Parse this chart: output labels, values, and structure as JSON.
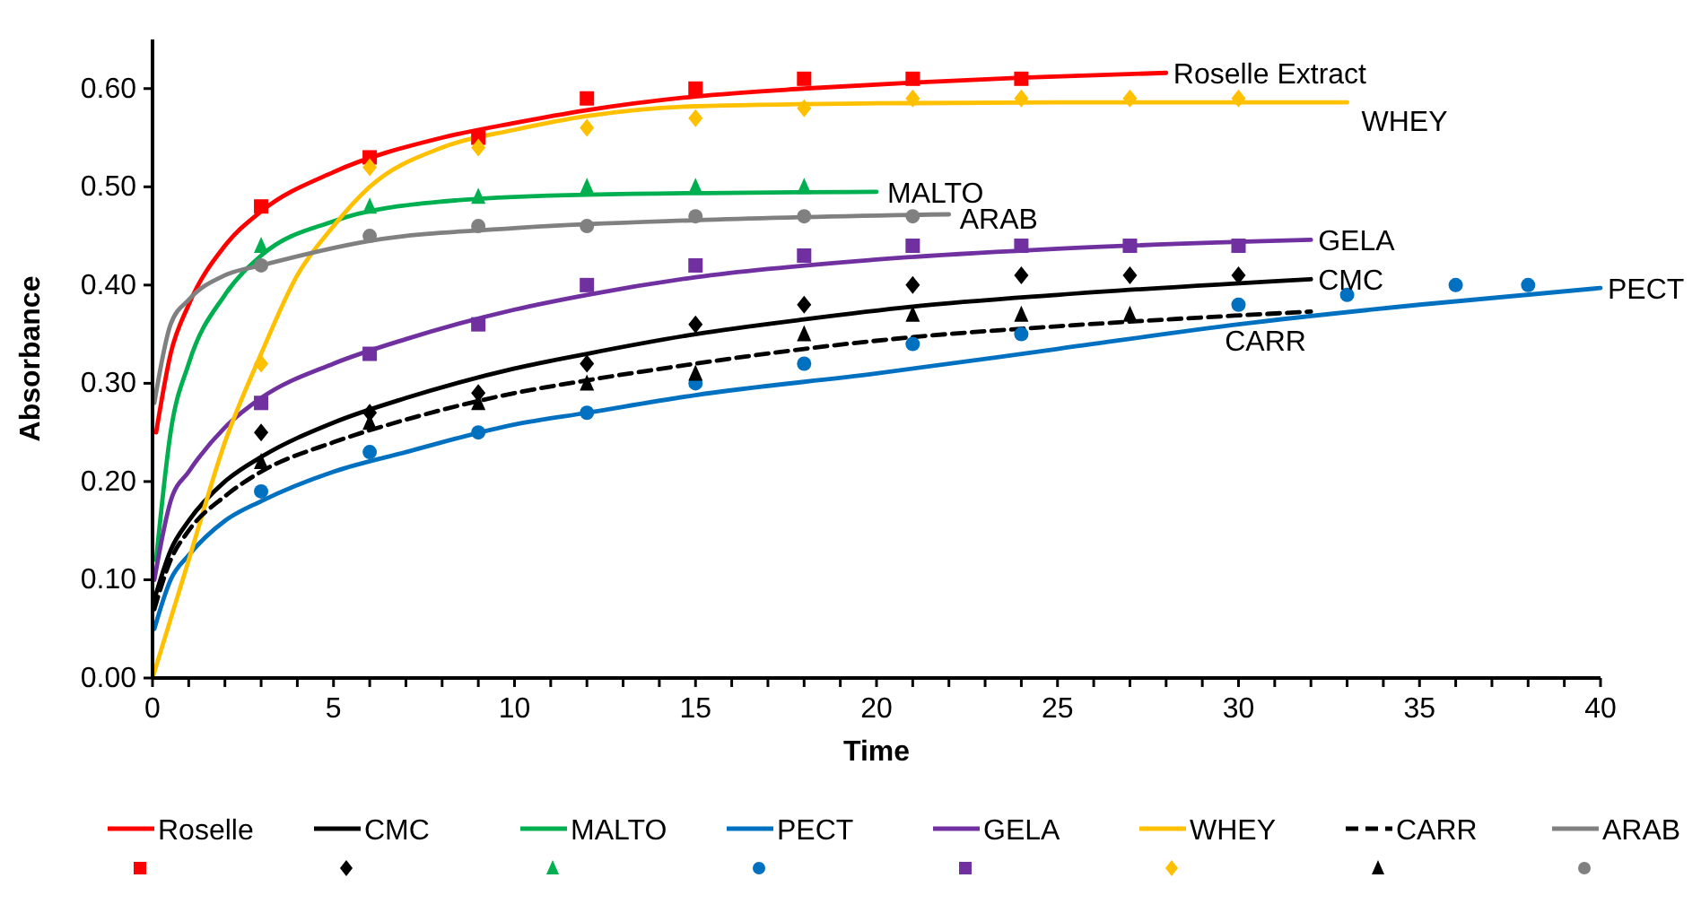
{
  "chart_data": {
    "type": "line",
    "xlabel": "Time",
    "ylabel": "Absorbance",
    "xlim": [
      0,
      40
    ],
    "ylim": [
      0,
      0.65
    ],
    "xticks": [
      0,
      {
        "value": 1,
        "label": null
      },
      {
        "value": 2,
        "label": null
      },
      {
        "value": 3,
        "label": null
      },
      {
        "value": 4,
        "label": null
      },
      5,
      {
        "value": 6,
        "label": null
      },
      {
        "value": 7,
        "label": null
      },
      {
        "value": 8,
        "label": null
      },
      {
        "value": 9,
        "label": null
      },
      10,
      {
        "value": 11,
        "label": null
      },
      {
        "value": 12,
        "label": null
      },
      {
        "value": 13,
        "label": null
      },
      {
        "value": 14,
        "label": null
      },
      15,
      {
        "value": 16,
        "label": null
      },
      {
        "value": 17,
        "label": null
      },
      {
        "value": 18,
        "label": null
      },
      {
        "value": 19,
        "label": null
      },
      20,
      {
        "value": 21,
        "label": null
      },
      {
        "value": 22,
        "label": null
      },
      {
        "value": 23,
        "label": null
      },
      {
        "value": 24,
        "label": null
      },
      25,
      {
        "value": 26,
        "label": null
      },
      {
        "value": 27,
        "label": null
      },
      {
        "value": 28,
        "label": null
      },
      {
        "value": 29,
        "label": null
      },
      30,
      {
        "value": 31,
        "label": null
      },
      {
        "value": 32,
        "label": null
      },
      {
        "value": 33,
        "label": null
      },
      {
        "value": 34,
        "label": null
      },
      35,
      {
        "value": 36,
        "label": null
      },
      {
        "value": 37,
        "label": null
      },
      {
        "value": 38,
        "label": null
      },
      {
        "value": 39,
        "label": null
      },
      40
    ],
    "yticks": [
      {
        "value": 0,
        "label": "0.00"
      },
      {
        "value": 0.1,
        "label": "0.10"
      },
      {
        "value": 0.2,
        "label": "0.20"
      },
      {
        "value": 0.3,
        "label": "0.30"
      },
      {
        "value": 0.4,
        "label": "0.40"
      },
      {
        "value": 0.5,
        "label": "0.50"
      },
      {
        "value": 0.6,
        "label": "0.60"
      }
    ],
    "grid": false,
    "legend": "bottom",
    "series": [
      {
        "name": "Roselle",
        "color": "#ff0000",
        "line_style": "solid",
        "x": [
          0.1,
          0.5,
          1,
          2,
          3,
          5,
          8,
          10,
          12,
          15,
          18,
          21,
          24,
          28
        ],
        "values": [
          0.25,
          0.33,
          0.38,
          0.44,
          0.475,
          0.515,
          0.55,
          0.565,
          0.578,
          0.592,
          0.6,
          0.606,
          0.611,
          0.616
        ]
      },
      {
        "name": "CMC",
        "color": "#000000",
        "line_style": "solid",
        "x": [
          0.05,
          0.5,
          1,
          2,
          3,
          5,
          7,
          10,
          12,
          15,
          18,
          21,
          25,
          32
        ],
        "values": [
          0.08,
          0.13,
          0.16,
          0.2,
          0.225,
          0.26,
          0.285,
          0.315,
          0.33,
          0.35,
          0.365,
          0.378,
          0.39,
          0.406
        ]
      },
      {
        "name": "MALTO",
        "color": "#00b050",
        "line_style": "solid",
        "x": [
          0.1,
          0.5,
          1,
          2,
          3,
          5,
          8,
          12,
          20
        ],
        "values": [
          0.12,
          0.25,
          0.32,
          0.39,
          0.43,
          0.465,
          0.485,
          0.492,
          0.495
        ]
      },
      {
        "name": "PECT",
        "color": "#0070c0",
        "line_style": "solid",
        "x": [
          0.05,
          0.5,
          1,
          2,
          3,
          5,
          7,
          10,
          12,
          15,
          20,
          25,
          30,
          35,
          40
        ],
        "values": [
          0.05,
          0.1,
          0.125,
          0.16,
          0.18,
          0.21,
          0.23,
          0.258,
          0.27,
          0.288,
          0.31,
          0.335,
          0.36,
          0.38,
          0.397
        ]
      },
      {
        "name": "GELA",
        "color": "#7030a0",
        "line_style": "solid",
        "x": [
          0.05,
          0.5,
          1,
          2,
          3,
          5,
          7,
          10,
          12,
          15,
          20,
          25,
          32
        ],
        "values": [
          0.1,
          0.18,
          0.21,
          0.255,
          0.285,
          0.32,
          0.345,
          0.375,
          0.39,
          0.408,
          0.426,
          0.437,
          0.446
        ]
      },
      {
        "name": "WHEY",
        "color": "#ffc000",
        "line_style": "solid",
        "x": [
          0,
          1,
          2,
          3,
          4,
          5,
          6,
          8,
          10,
          12,
          15,
          20,
          25,
          33
        ],
        "values": [
          0,
          0.12,
          0.24,
          0.33,
          0.41,
          0.46,
          0.5,
          0.54,
          0.558,
          0.572,
          0.582,
          0.585,
          0.586,
          0.586
        ]
      },
      {
        "name": "CARR",
        "color": "#000000",
        "line_style": "dashed",
        "x": [
          0.05,
          0.5,
          1,
          2,
          3,
          5,
          7,
          10,
          12,
          15,
          18,
          21,
          25,
          32
        ],
        "values": [
          0.07,
          0.12,
          0.15,
          0.185,
          0.21,
          0.24,
          0.263,
          0.29,
          0.303,
          0.32,
          0.335,
          0.347,
          0.358,
          0.373
        ]
      },
      {
        "name": "ARAB",
        "color": "#808080",
        "line_style": "solid",
        "x": [
          0.05,
          0.5,
          1,
          2,
          3,
          6,
          10,
          15,
          22
        ],
        "values": [
          0.28,
          0.36,
          0.385,
          0.41,
          0.42,
          0.445,
          0.458,
          0.466,
          0.472
        ]
      },
      {
        "type": "scatter",
        "color": "#ff0000",
        "marker": "square",
        "x": [
          3,
          6,
          9,
          12,
          15,
          18,
          21,
          24
        ],
        "values": [
          0.48,
          0.53,
          0.55,
          0.59,
          0.6,
          0.61,
          0.61,
          0.61
        ]
      },
      {
        "type": "scatter",
        "color": "#000000",
        "marker": "diamond",
        "x": [
          3,
          6,
          9,
          12,
          15,
          18,
          21,
          24,
          27,
          30
        ],
        "values": [
          0.25,
          0.27,
          0.29,
          0.32,
          0.36,
          0.38,
          0.4,
          0.41,
          0.41,
          0.41
        ]
      },
      {
        "type": "scatter",
        "color": "#00b050",
        "marker": "triangle",
        "x": [
          3,
          6,
          9,
          12,
          15,
          18
        ],
        "values": [
          0.44,
          0.48,
          0.49,
          0.5,
          0.5,
          0.5
        ]
      },
      {
        "type": "scatter",
        "color": "#0070c0",
        "marker": "circle",
        "x": [
          3,
          6,
          9,
          12,
          15,
          18,
          21,
          24,
          30,
          33,
          36,
          38
        ],
        "values": [
          0.19,
          0.23,
          0.25,
          0.27,
          0.3,
          0.32,
          0.34,
          0.35,
          0.38,
          0.39,
          0.4,
          0.4
        ]
      },
      {
        "type": "scatter",
        "color": "#7030a0",
        "marker": "square",
        "x": [
          3,
          6,
          9,
          12,
          15,
          18,
          21,
          24,
          27,
          30
        ],
        "values": [
          0.28,
          0.33,
          0.36,
          0.4,
          0.42,
          0.43,
          0.44,
          0.44,
          0.44,
          0.44
        ]
      },
      {
        "type": "scatter",
        "color": "#ffc000",
        "marker": "diamond",
        "x": [
          3,
          6,
          9,
          12,
          15,
          18,
          21,
          24,
          27,
          30
        ],
        "values": [
          0.32,
          0.52,
          0.54,
          0.56,
          0.57,
          0.58,
          0.59,
          0.59,
          0.59,
          0.59
        ]
      },
      {
        "type": "scatter",
        "color": "#000000",
        "marker": "triangle",
        "x": [
          3,
          6,
          9,
          12,
          15,
          18,
          21,
          24,
          27
        ],
        "values": [
          0.22,
          0.26,
          0.28,
          0.3,
          0.31,
          0.35,
          0.37,
          0.37,
          0.37
        ]
      },
      {
        "type": "scatter",
        "color": "#808080",
        "marker": "circle",
        "x": [
          3,
          6,
          9,
          12,
          15,
          18,
          21
        ],
        "values": [
          0.42,
          0.45,
          0.46,
          0.46,
          0.47,
          0.47,
          0.47
        ]
      }
    ],
    "annotations": [
      "Roselle Extract",
      "CMC",
      "MALTO",
      "PECT",
      "GELA",
      "WHEY",
      "CARR",
      "ARAB"
    ]
  }
}
